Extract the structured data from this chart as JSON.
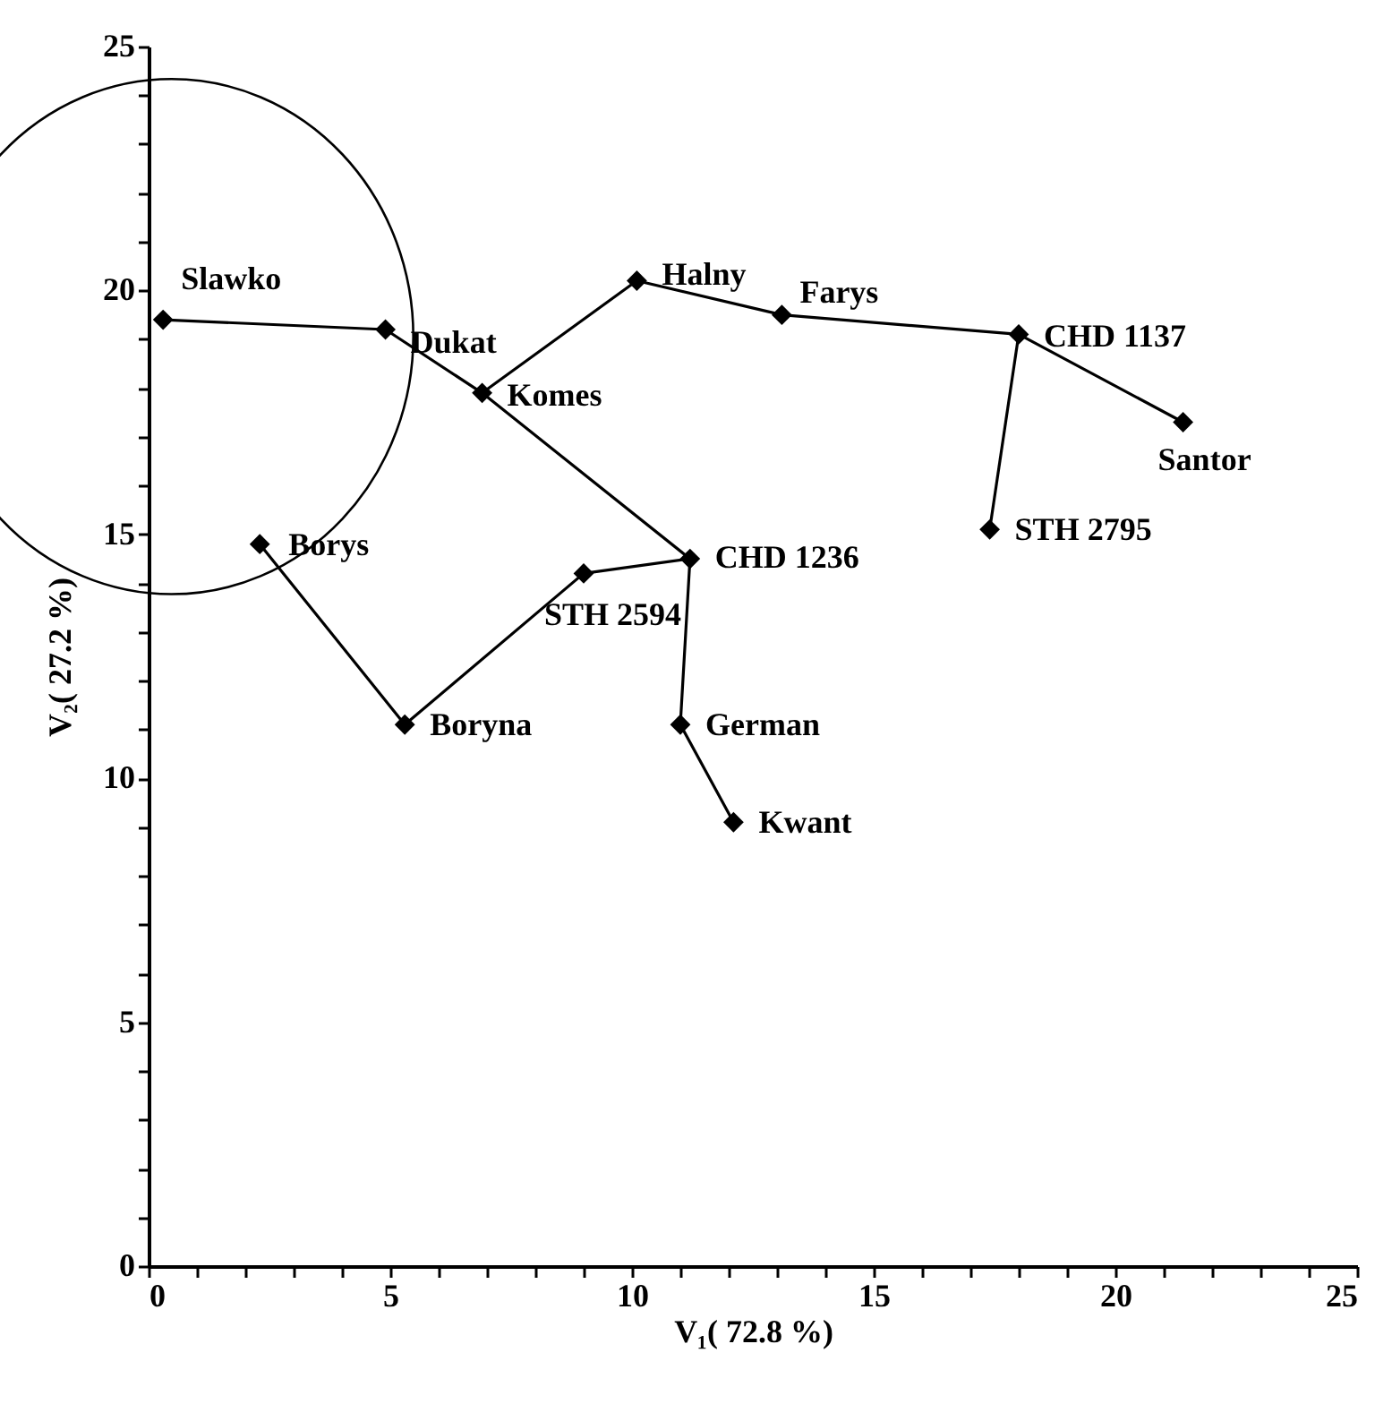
{
  "chart_data": {
    "type": "scatter",
    "xlabel": "V₁( 72.8 %)",
    "ylabel": "V₂( 27.2 %)",
    "xlim": [
      0,
      25
    ],
    "ylim": [
      0,
      25
    ],
    "xticks": [
      0,
      {
        "value": 1,
        "label": null
      },
      {
        "value": 2,
        "label": null
      },
      {
        "value": 3,
        "label": null
      },
      {
        "value": 4,
        "label": null
      },
      5,
      {
        "value": 6,
        "label": null
      },
      {
        "value": 7,
        "label": null
      },
      {
        "value": 8,
        "label": null
      },
      {
        "value": 9,
        "label": null
      },
      10,
      {
        "value": 11,
        "label": null
      },
      {
        "value": 12,
        "label": null
      },
      {
        "value": 13,
        "label": null
      },
      {
        "value": 14,
        "label": null
      },
      15,
      {
        "value": 16,
        "label": null
      },
      {
        "value": 17,
        "label": null
      },
      {
        "value": 18,
        "label": null
      },
      {
        "value": 19,
        "label": null
      },
      20,
      {
        "value": 21,
        "label": null
      },
      {
        "value": 22,
        "label": null
      },
      {
        "value": 23,
        "label": null
      },
      {
        "value": 24,
        "label": null
      },
      25
    ],
    "yticks": [
      0,
      {
        "value": 1,
        "label": null
      },
      {
        "value": 2,
        "label": null
      },
      {
        "value": 3,
        "label": null
      },
      {
        "value": 4,
        "label": null
      },
      5,
      {
        "value": 6,
        "label": null
      },
      {
        "value": 7,
        "label": null
      },
      {
        "value": 8,
        "label": null
      },
      {
        "value": 9,
        "label": null
      },
      10,
      {
        "value": 11,
        "label": null
      },
      {
        "value": 12,
        "label": null
      },
      {
        "value": 13,
        "label": null
      },
      {
        "value": 14,
        "label": null
      },
      15,
      {
        "value": 16,
        "label": null
      },
      {
        "value": 17,
        "label": null
      },
      {
        "value": 18,
        "label": null
      },
      {
        "value": 19,
        "label": null
      },
      20,
      {
        "value": 21,
        "label": null
      },
      {
        "value": 22,
        "label": null
      },
      {
        "value": 23,
        "label": null
      },
      {
        "value": 24,
        "label": null
      },
      25
    ],
    "grid": false,
    "series": [
      {
        "type": "line",
        "color": "#000000",
        "marker": "none",
        "line_style": "solid",
        "x": [
          0.3,
          4.9,
          6.9,
          10.1,
          13.1,
          18.0,
          21.4
        ],
        "values": [
          19.4,
          19.2,
          17.9,
          20.2,
          19.5,
          19.1,
          17.3
        ]
      },
      {
        "type": "line",
        "color": "#000000",
        "marker": "none",
        "line_style": "solid",
        "x": [
          18.0,
          17.4
        ],
        "values": [
          19.1,
          15.1
        ]
      },
      {
        "type": "line",
        "color": "#000000",
        "marker": "none",
        "line_style": "solid",
        "x": [
          6.9,
          11.2,
          9.0,
          5.3,
          2.3
        ],
        "values": [
          17.9,
          14.5,
          14.2,
          11.1,
          14.8
        ]
      },
      {
        "type": "line",
        "color": "#000000",
        "marker": "none",
        "line_style": "solid",
        "x": [
          11.2,
          11.0,
          12.1
        ],
        "values": [
          14.5,
          11.1,
          9.1
        ]
      },
      {
        "type": "scatter",
        "color": "#000000",
        "marker": "diamond",
        "x": [
          0.3,
          4.9,
          6.9,
          10.1,
          13.1,
          18.0,
          21.4,
          17.4,
          11.2,
          9.0,
          2.3,
          5.3,
          11.0,
          12.1
        ],
        "values": [
          19.4,
          19.2,
          17.9,
          20.2,
          19.5,
          19.1,
          17.3,
          15.1,
          14.5,
          14.2,
          14.8,
          11.1,
          11.1,
          9.1
        ]
      }
    ],
    "annotations": [
      {
        "text": "Slawko",
        "x": 0.3,
        "y": 19.4
      },
      {
        "text": "Dukat",
        "x": 4.9,
        "y": 19.2
      },
      {
        "text": "Komes",
        "x": 6.9,
        "y": 17.9
      },
      {
        "text": "Halny",
        "x": 10.1,
        "y": 20.2
      },
      {
        "text": "Farys",
        "x": 13.1,
        "y": 19.5
      },
      {
        "text": "CHD 1137",
        "x": 18.0,
        "y": 19.1
      },
      {
        "text": "Santor",
        "x": 21.4,
        "y": 17.3
      },
      {
        "text": "STH 2795",
        "x": 17.4,
        "y": 15.1
      },
      {
        "text": "CHD 1236",
        "x": 11.2,
        "y": 14.5
      },
      {
        "text": "STH 2594",
        "x": 9.0,
        "y": 14.2
      },
      {
        "text": "Borys",
        "x": 2.3,
        "y": 14.8
      },
      {
        "text": "Boryna",
        "x": 5.3,
        "y": 11.1
      },
      {
        "text": "German",
        "x": 11.0,
        "y": 11.1
      },
      {
        "text": "Kwant",
        "x": 12.1,
        "y": 9.1
      }
    ]
  }
}
